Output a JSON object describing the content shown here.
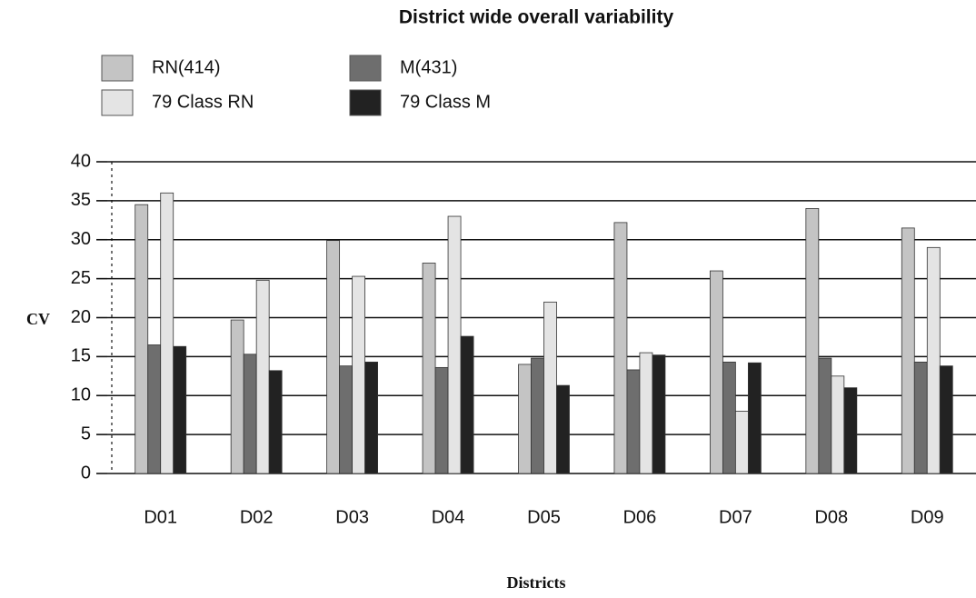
{
  "chart_data": {
    "type": "bar",
    "title": "District wide overall variability",
    "x_label": "Districts",
    "y_label": "CV",
    "categories": [
      "D01",
      "D02",
      "D03",
      "D04",
      "D05",
      "D06",
      "D07",
      "D08",
      "D09"
    ],
    "series": [
      {
        "name": "RN(414)",
        "color": "#c4c4c4",
        "values": [
          34.5,
          19.7,
          29.9,
          27,
          14,
          32.2,
          26,
          34,
          31.5
        ]
      },
      {
        "name": "M(431)",
        "color": "#6e6e6e",
        "values": [
          16.5,
          15.3,
          13.8,
          13.6,
          14.8,
          13.3,
          14.3,
          14.8,
          14.3
        ]
      },
      {
        "name": "79 Class RN",
        "color": "#e4e4e4",
        "values": [
          36,
          24.8,
          25.3,
          33,
          22,
          15.5,
          8,
          12.5,
          29
        ]
      },
      {
        "name": "79 Class M",
        "color": "#222222",
        "values": [
          16.3,
          13.2,
          14.3,
          17.6,
          11.3,
          15.2,
          14.2,
          11,
          13.8
        ]
      }
    ],
    "ylim": [
      0,
      40
    ],
    "yticks": [
      0,
      5,
      10,
      15,
      20,
      25,
      30,
      35,
      40
    ],
    "grid": true
  }
}
